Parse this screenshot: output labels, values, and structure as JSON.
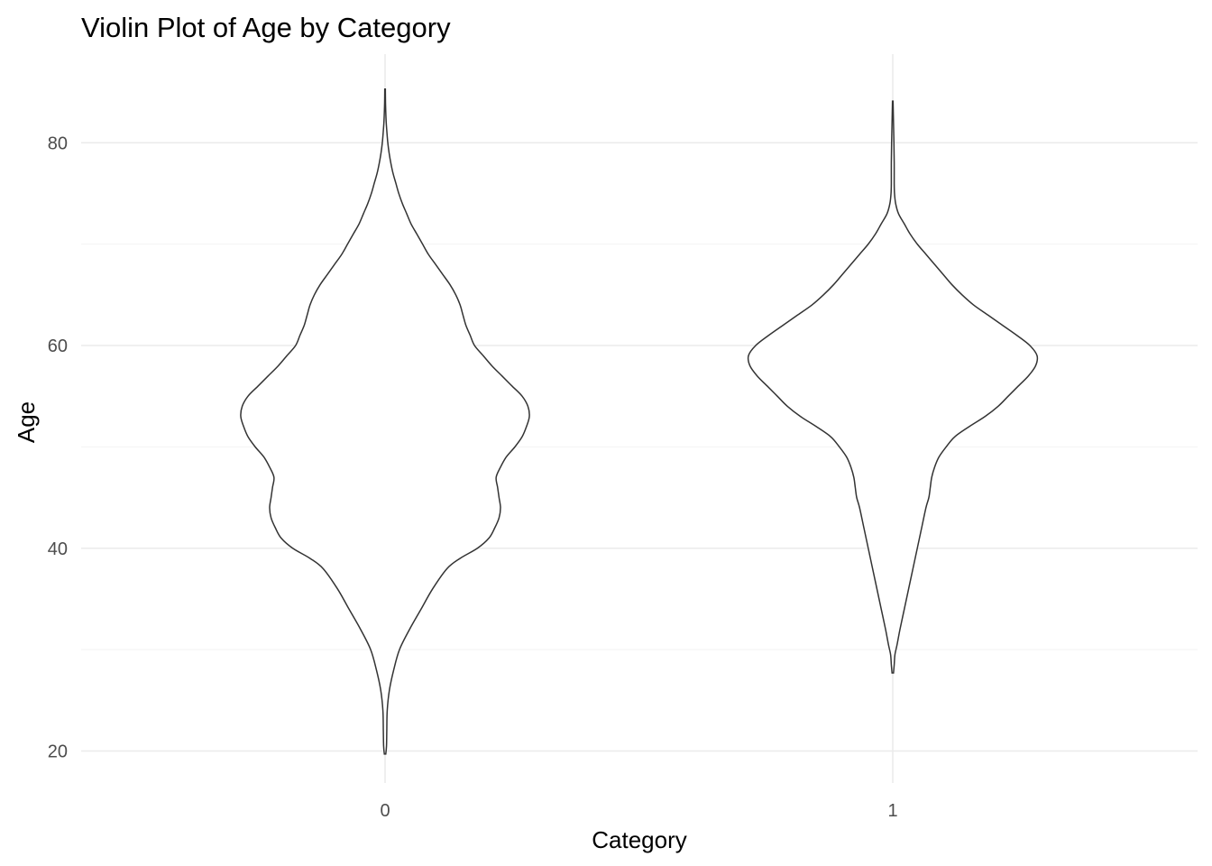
{
  "chart_data": {
    "type": "violin",
    "title": "Violin Plot of Age by Category",
    "xlabel": "Category",
    "ylabel": "Age",
    "categories": [
      "0",
      "1"
    ],
    "y_ticks": [
      20,
      40,
      60,
      80
    ],
    "ylim": [
      14.8,
      87.8
    ],
    "grid": true,
    "legend": "none",
    "line_color": "#333333",
    "fill_color": "#ffffff",
    "series": [
      {
        "category": "0",
        "ymin": 19.7,
        "ymax": 85.3,
        "density_profile": [
          [
            19.7,
            0.005
          ],
          [
            20.5,
            0.01
          ],
          [
            22,
            0.012
          ],
          [
            24,
            0.015
          ],
          [
            26,
            0.03
          ],
          [
            28,
            0.06
          ],
          [
            30,
            0.1
          ],
          [
            32,
            0.17
          ],
          [
            34,
            0.25
          ],
          [
            36,
            0.33
          ],
          [
            38,
            0.43
          ],
          [
            39,
            0.52
          ],
          [
            40,
            0.64
          ],
          [
            41,
            0.72
          ],
          [
            42,
            0.76
          ],
          [
            43,
            0.79
          ],
          [
            44,
            0.8
          ],
          [
            45,
            0.79
          ],
          [
            46,
            0.78
          ],
          [
            47,
            0.77
          ],
          [
            48,
            0.8
          ],
          [
            49,
            0.84
          ],
          [
            50,
            0.9
          ],
          [
            51,
            0.95
          ],
          [
            52,
            0.98
          ],
          [
            53,
            1.0
          ],
          [
            54,
            0.99
          ],
          [
            55,
            0.95
          ],
          [
            56,
            0.88
          ],
          [
            57,
            0.81
          ],
          [
            58,
            0.74
          ],
          [
            59,
            0.68
          ],
          [
            60,
            0.62
          ],
          [
            61,
            0.59
          ],
          [
            62,
            0.56
          ],
          [
            63,
            0.54
          ],
          [
            64,
            0.52
          ],
          [
            65,
            0.49
          ],
          [
            66,
            0.45
          ],
          [
            67,
            0.4
          ],
          [
            68,
            0.35
          ],
          [
            69,
            0.3
          ],
          [
            70,
            0.26
          ],
          [
            71,
            0.22
          ],
          [
            72,
            0.18
          ],
          [
            73,
            0.15
          ],
          [
            74,
            0.12
          ],
          [
            75,
            0.095
          ],
          [
            76,
            0.075
          ],
          [
            77,
            0.055
          ],
          [
            78,
            0.04
          ],
          [
            79,
            0.028
          ],
          [
            80,
            0.019
          ],
          [
            81,
            0.013
          ],
          [
            82,
            0.008
          ],
          [
            83,
            0.005
          ],
          [
            84,
            0.003
          ],
          [
            85.3,
            0.002
          ]
        ]
      },
      {
        "category": "1",
        "ymin": 27.7,
        "ymax": 84.1,
        "density_profile": [
          [
            27.7,
            0.005
          ],
          [
            28.5,
            0.01
          ],
          [
            29.5,
            0.015
          ],
          [
            30.5,
            0.03
          ],
          [
            32,
            0.05
          ],
          [
            34,
            0.08
          ],
          [
            36,
            0.11
          ],
          [
            38,
            0.14
          ],
          [
            40,
            0.17
          ],
          [
            42,
            0.2
          ],
          [
            44,
            0.23
          ],
          [
            45,
            0.25
          ],
          [
            46,
            0.26
          ],
          [
            47,
            0.27
          ],
          [
            48,
            0.29
          ],
          [
            49,
            0.32
          ],
          [
            50,
            0.37
          ],
          [
            51,
            0.43
          ],
          [
            52,
            0.53
          ],
          [
            53,
            0.64
          ],
          [
            54,
            0.73
          ],
          [
            55,
            0.8
          ],
          [
            56,
            0.87
          ],
          [
            57,
            0.94
          ],
          [
            58,
            0.99
          ],
          [
            59,
            1.0
          ],
          [
            60,
            0.95
          ],
          [
            61,
            0.86
          ],
          [
            62,
            0.76
          ],
          [
            63,
            0.66
          ],
          [
            64,
            0.56
          ],
          [
            65,
            0.48
          ],
          [
            66,
            0.41
          ],
          [
            67,
            0.35
          ],
          [
            68,
            0.29
          ],
          [
            69,
            0.23
          ],
          [
            70,
            0.17
          ],
          [
            71,
            0.12
          ],
          [
            72,
            0.08
          ],
          [
            73,
            0.04
          ],
          [
            74,
            0.02
          ],
          [
            75,
            0.012
          ],
          [
            76,
            0.01
          ],
          [
            78,
            0.01
          ],
          [
            80,
            0.008
          ],
          [
            82,
            0.005
          ],
          [
            84.1,
            0.002
          ]
        ]
      }
    ]
  }
}
